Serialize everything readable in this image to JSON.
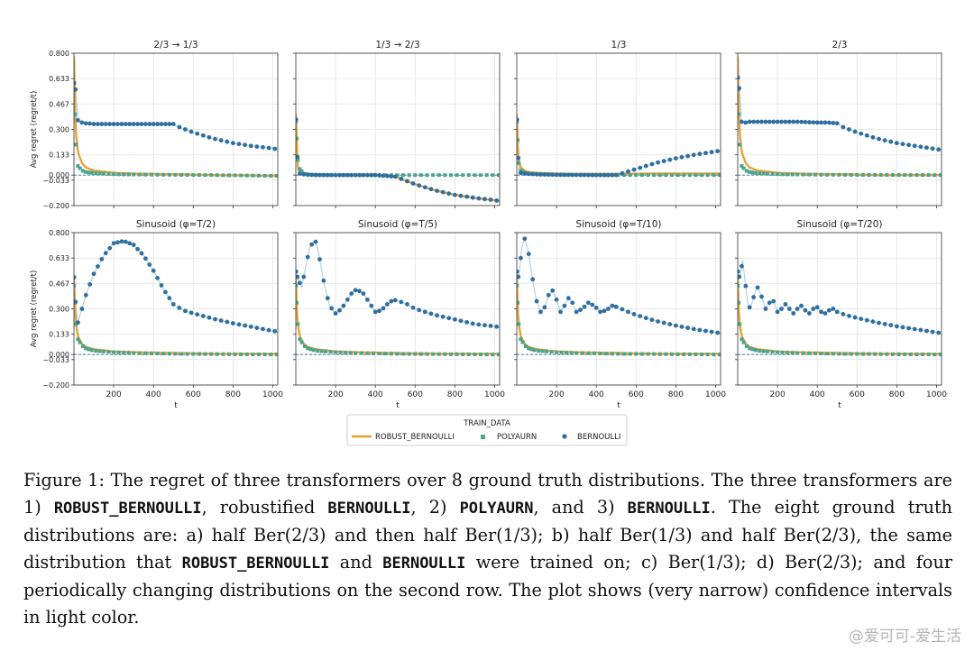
{
  "chart_data": {
    "type": "scatter",
    "grid": true,
    "xlabel": "t",
    "ylabel": "Avg regret (regret/t)",
    "xlim": [
      0,
      1025
    ],
    "ylim": [
      -0.2,
      0.8
    ],
    "yticks": [
      "0.800",
      "0.633",
      "0.467",
      "0.300",
      "0.133",
      "0.000",
      "−0.033",
      "−0.200"
    ],
    "ytick_values": [
      0.8,
      0.633,
      0.467,
      0.3,
      0.133,
      0.0,
      -0.033,
      -0.2
    ],
    "xticks": [
      "200",
      "400",
      "600",
      "800",
      "1000"
    ],
    "xtick_values": [
      200,
      400,
      600,
      800,
      1000
    ],
    "legend": {
      "title": "TRAIN_DATA",
      "entries": [
        {
          "label": "ROBUST_BERNOULLI",
          "marker": "line",
          "color": "#e2a43a"
        },
        {
          "label": "POLYAURN",
          "marker": "square",
          "color": "#4ea48a"
        },
        {
          "label": "BERNOULLI",
          "marker": "circle",
          "color": "#2f6fa0"
        }
      ]
    },
    "panels": [
      {
        "title": "2/3 → 1/3",
        "bernoulli": {
          "x": [
            0,
            10,
            20,
            40,
            60,
            80,
            100,
            150,
            200,
            300,
            400,
            450,
            500,
            520,
            600,
            700,
            800,
            900,
            1000,
            1025
          ],
          "y": [
            0.61,
            0.55,
            0.36,
            0.345,
            0.34,
            0.338,
            0.335,
            0.335,
            0.335,
            0.335,
            0.335,
            0.335,
            0.335,
            0.32,
            0.28,
            0.24,
            0.21,
            0.19,
            0.175,
            0.17
          ]
        },
        "polyaurn": {
          "x": [
            0,
            10,
            20,
            40,
            60,
            100,
            200,
            300,
            500,
            700,
            1025
          ],
          "y": [
            0.6,
            0.2,
            0.06,
            0.03,
            0.02,
            0.013,
            0.006,
            0.004,
            0.002,
            0.0,
            -0.005
          ]
        },
        "robust": {
          "x": [
            0,
            5,
            10,
            20,
            40,
            60,
            100,
            200,
            300,
            500,
            700,
            1025
          ],
          "y": [
            0.78,
            0.45,
            0.28,
            0.15,
            0.08,
            0.05,
            0.03,
            0.015,
            0.01,
            0.005,
            0.0,
            -0.005
          ]
        }
      },
      {
        "title": "1/3 → 2/3",
        "bernoulli": {
          "x": [
            0,
            10,
            20,
            40,
            60,
            100,
            200,
            300,
            400,
            500,
            600,
            700,
            800,
            900,
            1000,
            1025
          ],
          "y": [
            0.4,
            0.05,
            0.01,
            0.005,
            0.002,
            0.0,
            0.0,
            0.0,
            0.0,
            -0.01,
            -0.06,
            -0.1,
            -0.13,
            -0.15,
            -0.165,
            -0.17
          ]
        },
        "polyaurn": {
          "x": [
            0,
            10,
            20,
            40,
            60,
            100,
            200,
            300,
            500,
            700,
            1025
          ],
          "y": [
            0.38,
            0.1,
            0.04,
            0.01,
            0.005,
            0.002,
            0.0,
            0.0,
            0.0,
            0.0,
            0.0
          ]
        },
        "robust": {
          "x": [
            0,
            10,
            20,
            40,
            60,
            100,
            200,
            300,
            400,
            500,
            600,
            700,
            800,
            900,
            1000,
            1025
          ],
          "y": [
            0.4,
            0.05,
            0.01,
            0.005,
            0.002,
            0.0,
            0.0,
            0.0,
            0.0,
            -0.01,
            -0.06,
            -0.1,
            -0.13,
            -0.15,
            -0.165,
            -0.17
          ]
        }
      },
      {
        "title": "1/3",
        "bernoulli": {
          "x": [
            0,
            10,
            20,
            40,
            60,
            100,
            200,
            300,
            400,
            500,
            600,
            700,
            800,
            900,
            1000,
            1025
          ],
          "y": [
            0.4,
            0.04,
            0.015,
            0.01,
            0.008,
            0.005,
            0.002,
            0.001,
            0.0,
            0.0,
            0.04,
            0.08,
            0.11,
            0.135,
            0.155,
            0.16
          ]
        },
        "polyaurn": {
          "x": [
            0,
            10,
            20,
            40,
            60,
            100,
            200,
            300,
            500,
            700,
            1025
          ],
          "y": [
            0.38,
            0.08,
            0.03,
            0.015,
            0.01,
            0.006,
            0.003,
            0.002,
            0.0,
            0.0,
            0.0
          ]
        },
        "robust": {
          "x": [
            0,
            5,
            10,
            20,
            40,
            60,
            100,
            200,
            300,
            500,
            700,
            1025
          ],
          "y": [
            0.4,
            0.2,
            0.1,
            0.05,
            0.03,
            0.02,
            0.015,
            0.01,
            0.008,
            0.008,
            0.01,
            0.01
          ]
        }
      },
      {
        "title": "2/3",
        "bernoulli": {
          "x": [
            0,
            10,
            20,
            40,
            60,
            80,
            100,
            150,
            200,
            300,
            400,
            450,
            500,
            520,
            600,
            700,
            800,
            900,
            1000,
            1025
          ],
          "y": [
            0.65,
            0.55,
            0.35,
            0.345,
            0.35,
            0.35,
            0.35,
            0.35,
            0.35,
            0.35,
            0.345,
            0.345,
            0.34,
            0.32,
            0.28,
            0.24,
            0.21,
            0.19,
            0.17,
            0.165
          ]
        },
        "polyaurn": {
          "x": [
            0,
            10,
            20,
            40,
            60,
            100,
            200,
            300,
            500,
            700,
            1025
          ],
          "y": [
            0.6,
            0.2,
            0.06,
            0.03,
            0.02,
            0.012,
            0.006,
            0.004,
            0.002,
            0.001,
            0.0
          ]
        },
        "robust": {
          "x": [
            0,
            5,
            10,
            20,
            40,
            60,
            100,
            200,
            300,
            500,
            700,
            1025
          ],
          "y": [
            0.78,
            0.45,
            0.28,
            0.15,
            0.08,
            0.05,
            0.03,
            0.015,
            0.01,
            0.005,
            0.0,
            0.0
          ]
        }
      },
      {
        "title": "Sinusoid (φ=T/2)",
        "bernoulli": {
          "x": [
            0,
            10,
            20,
            40,
            60,
            80,
            100,
            150,
            200,
            250,
            300,
            350,
            400,
            450,
            500,
            550,
            600,
            700,
            800,
            900,
            1000,
            1025
          ],
          "y": [
            0.53,
            0.3,
            0.21,
            0.3,
            0.39,
            0.46,
            0.53,
            0.65,
            0.73,
            0.745,
            0.72,
            0.65,
            0.55,
            0.43,
            0.33,
            0.29,
            0.27,
            0.235,
            0.205,
            0.18,
            0.155,
            0.15
          ]
        },
        "polyaurn": {
          "x": [
            0,
            10,
            20,
            40,
            60,
            100,
            200,
            300,
            500,
            700,
            1025
          ],
          "y": [
            0.48,
            0.2,
            0.1,
            0.06,
            0.04,
            0.025,
            0.015,
            0.01,
            0.005,
            0.003,
            0.0
          ]
        },
        "robust": {
          "x": [
            0,
            5,
            10,
            20,
            40,
            60,
            100,
            200,
            300,
            500,
            700,
            1025
          ],
          "y": [
            0.5,
            0.3,
            0.2,
            0.12,
            0.07,
            0.05,
            0.035,
            0.02,
            0.015,
            0.01,
            0.005,
            0.005
          ]
        }
      },
      {
        "title": "Sinusoid (φ=T/5)",
        "bernoulli": {
          "x": [
            0,
            10,
            30,
            50,
            70,
            90,
            100,
            110,
            130,
            150,
            170,
            200,
            230,
            260,
            290,
            310,
            340,
            370,
            400,
            430,
            460,
            490,
            520,
            560,
            600,
            700,
            800,
            900,
            1000,
            1025
          ],
          "y": [
            0.55,
            0.5,
            0.44,
            0.58,
            0.7,
            0.745,
            0.74,
            0.7,
            0.55,
            0.42,
            0.32,
            0.27,
            0.3,
            0.36,
            0.42,
            0.425,
            0.4,
            0.34,
            0.28,
            0.29,
            0.33,
            0.36,
            0.35,
            0.33,
            0.3,
            0.26,
            0.23,
            0.2,
            0.185,
            0.18
          ]
        },
        "polyaurn": {
          "x": [
            0,
            10,
            20,
            40,
            60,
            100,
            200,
            300,
            500,
            700,
            1025
          ],
          "y": [
            0.48,
            0.2,
            0.1,
            0.06,
            0.04,
            0.025,
            0.015,
            0.01,
            0.005,
            0.003,
            0.0
          ]
        },
        "robust": {
          "x": [
            0,
            5,
            10,
            20,
            40,
            60,
            100,
            200,
            300,
            500,
            700,
            1025
          ],
          "y": [
            0.5,
            0.3,
            0.2,
            0.12,
            0.07,
            0.05,
            0.035,
            0.02,
            0.015,
            0.01,
            0.005,
            0.005
          ]
        }
      },
      {
        "title": "Sinusoid (φ=T/10)",
        "bernoulli": {
          "x": [
            0,
            10,
            25,
            40,
            55,
            70,
            85,
            100,
            120,
            140,
            160,
            180,
            200,
            220,
            240,
            260,
            280,
            300,
            330,
            360,
            390,
            420,
            450,
            480,
            510,
            540,
            600,
            700,
            800,
            900,
            1000,
            1025
          ],
          "y": [
            0.55,
            0.5,
            0.7,
            0.76,
            0.7,
            0.58,
            0.45,
            0.35,
            0.28,
            0.31,
            0.39,
            0.42,
            0.36,
            0.28,
            0.32,
            0.37,
            0.34,
            0.28,
            0.3,
            0.34,
            0.32,
            0.28,
            0.29,
            0.32,
            0.31,
            0.29,
            0.26,
            0.22,
            0.19,
            0.165,
            0.145,
            0.14
          ]
        },
        "polyaurn": {
          "x": [
            0,
            10,
            20,
            40,
            60,
            100,
            200,
            300,
            500,
            700,
            1025
          ],
          "y": [
            0.48,
            0.2,
            0.1,
            0.06,
            0.04,
            0.025,
            0.015,
            0.01,
            0.005,
            0.003,
            0.0
          ]
        },
        "robust": {
          "x": [
            0,
            5,
            10,
            20,
            40,
            60,
            100,
            200,
            300,
            500,
            700,
            1025
          ],
          "y": [
            0.5,
            0.3,
            0.2,
            0.12,
            0.07,
            0.05,
            0.035,
            0.02,
            0.015,
            0.01,
            0.005,
            0.005
          ]
        }
      },
      {
        "title": "Sinusoid (φ=T/20)",
        "bernoulli": {
          "x": [
            0,
            10,
            25,
            40,
            55,
            70,
            85,
            100,
            120,
            140,
            160,
            180,
            200,
            220,
            240,
            260,
            280,
            300,
            320,
            340,
            360,
            380,
            400,
            420,
            440,
            460,
            480,
            500,
            540,
            600,
            700,
            800,
            900,
            1000,
            1025
          ],
          "y": [
            0.55,
            0.5,
            0.62,
            0.45,
            0.3,
            0.33,
            0.4,
            0.44,
            0.38,
            0.3,
            0.34,
            0.35,
            0.28,
            0.3,
            0.33,
            0.3,
            0.27,
            0.3,
            0.32,
            0.29,
            0.27,
            0.3,
            0.31,
            0.28,
            0.27,
            0.29,
            0.3,
            0.28,
            0.26,
            0.24,
            0.21,
            0.185,
            0.165,
            0.145,
            0.14
          ]
        },
        "polyaurn": {
          "x": [
            0,
            10,
            20,
            40,
            60,
            100,
            200,
            300,
            500,
            700,
            1025
          ],
          "y": [
            0.48,
            0.2,
            0.1,
            0.06,
            0.04,
            0.025,
            0.015,
            0.01,
            0.005,
            0.003,
            0.0
          ]
        },
        "robust": {
          "x": [
            0,
            5,
            10,
            20,
            40,
            60,
            100,
            200,
            300,
            500,
            700,
            1025
          ],
          "y": [
            0.5,
            0.3,
            0.2,
            0.12,
            0.07,
            0.05,
            0.035,
            0.02,
            0.015,
            0.01,
            0.005,
            0.005
          ]
        }
      }
    ]
  },
  "caption": {
    "p1": "Figure 1:  The regret of three transformers over 8 ground truth distributions.  The three transformers are 1) ",
    "m1": "ROBUST_BERNOULLI",
    "p2": ", robustified ",
    "m2": "BERNOULLI",
    "p3": ", 2) ",
    "m3": "POLYAURN",
    "p4": ", and 3) ",
    "m4": "BERNOULLI",
    "p5": ". The eight ground truth distributions are:  a) half Ber(2/3) and then half Ber(1/3); b) half Ber(1/3) and half Ber(2/3), the same distribution that ",
    "m5": "ROBUST_BERNOULLI",
    "p6": " and ",
    "m6": "BERNOULLI",
    "p7": " were trained on; c) Ber(1/3); d) Ber(2/3); and four periodically changing distributions on the second row.  The plot shows (very narrow) confidence intervals in light color."
  },
  "watermark": "@爱可可-爱生活"
}
